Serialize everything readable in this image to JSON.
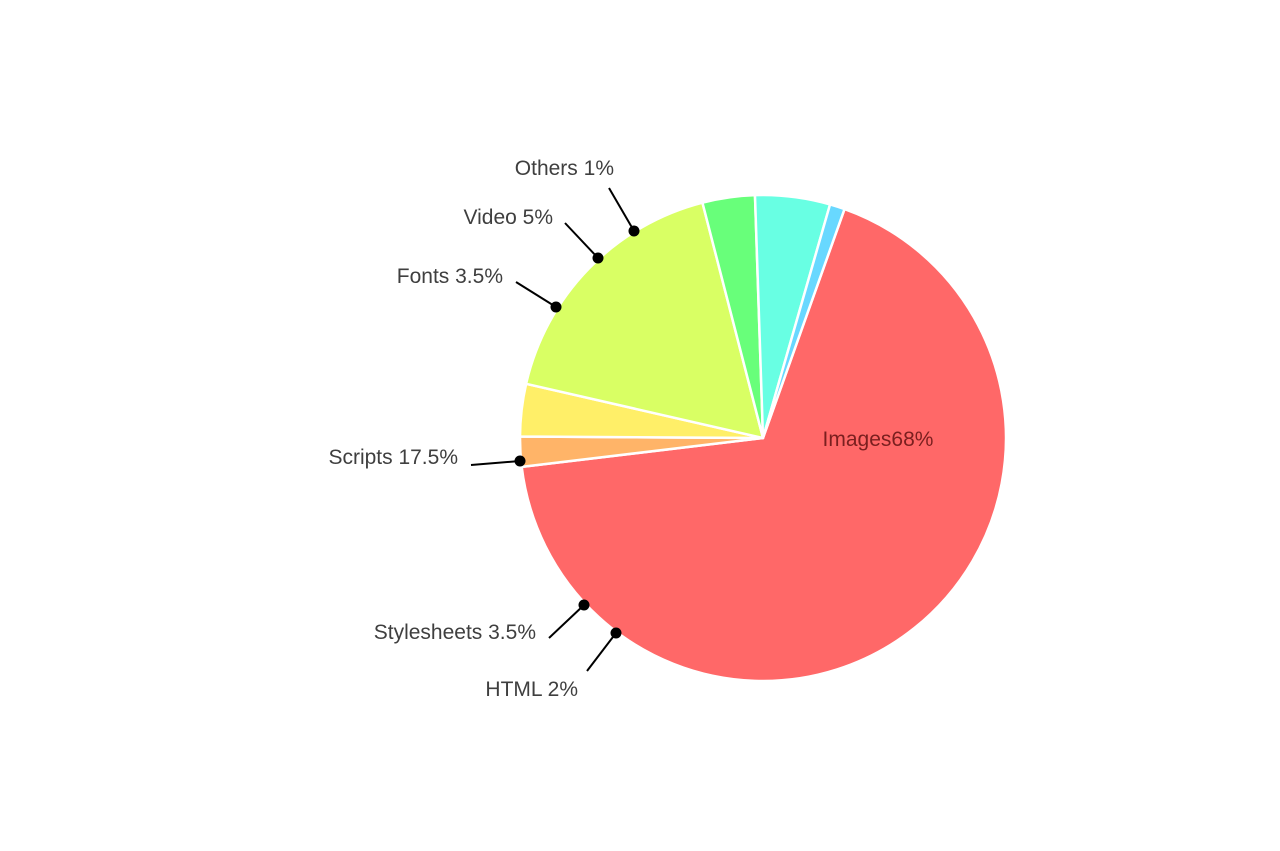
{
  "chart_data": {
    "type": "pie",
    "slices": [
      {
        "label": "Images",
        "display": "Images68%",
        "value": 68,
        "color": "#ff6868",
        "inside": true
      },
      {
        "label": "HTML",
        "display": "HTML 2%",
        "value": 2,
        "color": "#ffb468"
      },
      {
        "label": "Stylesheets",
        "display": "Stylesheets 3.5%",
        "value": 3.5,
        "color": "#ffef68"
      },
      {
        "label": "Scripts",
        "display": "Scripts 17.5%",
        "value": 17.5,
        "color": "#d9ff64"
      },
      {
        "label": "Fonts",
        "display": "Fonts 3.5%",
        "value": 3.5,
        "color": "#68ff7a"
      },
      {
        "label": "Video",
        "display": "Video 5%",
        "value": 5,
        "color": "#68ffe3"
      },
      {
        "label": "Others",
        "display": "Others 1%",
        "value": 1,
        "color": "#68d8ff"
      }
    ]
  }
}
